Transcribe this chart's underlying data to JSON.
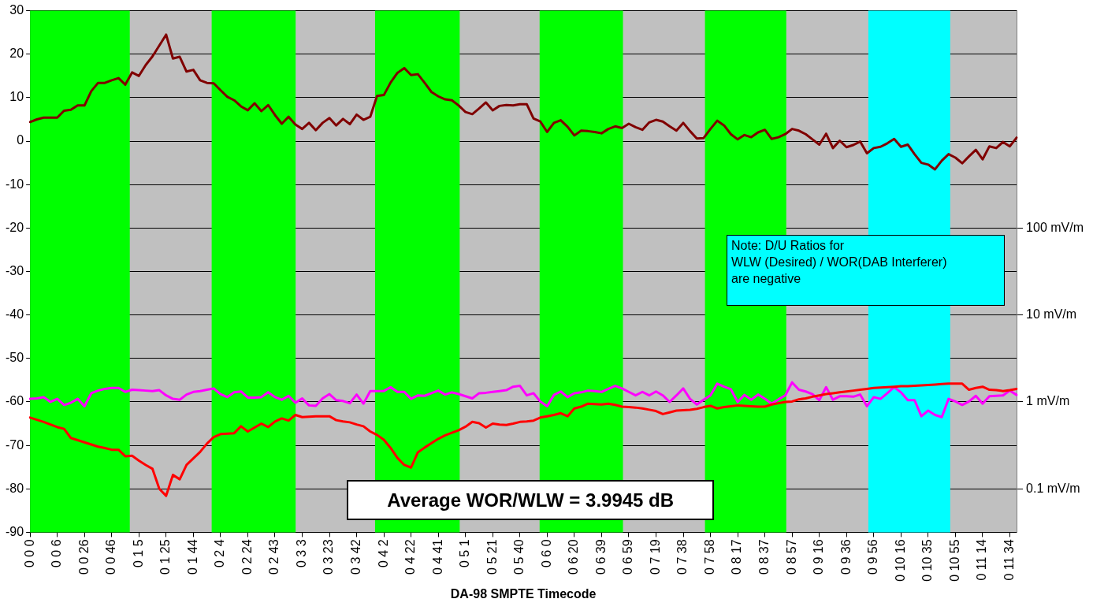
{
  "chart_data": {
    "type": "line",
    "xlabel": "DA-98 SMPTE Timecode",
    "annotations": [
      "Average WOR/WLW = 3.9945 dB",
      "Note: D/U Ratios for\nWLW (Desired) / WOR(DAB Interferer)\nare negative"
    ],
    "categories": [
      "0 0 0",
      null,
      null,
      null,
      "0 0 6",
      null,
      null,
      null,
      "0 0 26",
      null,
      null,
      null,
      "0 0 46",
      null,
      null,
      null,
      "0 1 5",
      null,
      null,
      null,
      "0 1 25",
      null,
      null,
      null,
      "0 1 44",
      null,
      null,
      null,
      "0 2 4",
      null,
      null,
      null,
      "0 2 24",
      null,
      null,
      null,
      "0 2 43",
      null,
      null,
      null,
      "0 3 3",
      null,
      null,
      null,
      "0 3 23",
      null,
      null,
      null,
      "0 3 42",
      null,
      null,
      null,
      "0 4 2",
      null,
      null,
      null,
      "0 4 22",
      null,
      null,
      null,
      "0 4 41",
      null,
      null,
      null,
      "0 5 1",
      null,
      null,
      null,
      "0 5 21",
      null,
      null,
      null,
      "0 5 40",
      null,
      null,
      null,
      "0 6 0",
      null,
      null,
      null,
      "0 6 20",
      null,
      null,
      null,
      "0 6 39",
      null,
      null,
      null,
      "0 6 59",
      null,
      null,
      null,
      "0 7 19",
      null,
      null,
      null,
      "0 7 38",
      null,
      null,
      null,
      "0 7 58",
      null,
      null,
      null,
      "0 8 17",
      null,
      null,
      null,
      "0 8 37",
      null,
      null,
      null,
      "0 8 57",
      null,
      null,
      null,
      "0 9 16",
      null,
      null,
      null,
      "0 9 36",
      null,
      null,
      null,
      "0 9 56",
      null,
      null,
      null,
      "0 10 16",
      null,
      null,
      null,
      "0 10 35",
      null,
      null,
      null,
      "0 10 55",
      null,
      null,
      null,
      "0 11 14",
      null,
      null,
      null,
      "0 11 34",
      null
    ],
    "ylim": [
      -90,
      30
    ],
    "yticks": [
      -90,
      -80,
      -70,
      -60,
      -50,
      -40,
      -30,
      -20,
      -10,
      0,
      10,
      20,
      30
    ],
    "log": "y2",
    "y2lim": [
      0.0316,
      31623
    ],
    "y2ticks": [
      {
        "value": 100,
        "label": "100 mV/m"
      },
      {
        "value": 10,
        "label": "10 mV/m"
      },
      {
        "value": 1,
        "label": "1 mV/m"
      },
      {
        "value": 0.1,
        "label": "0.1 mV/m"
      }
    ],
    "grid": "y",
    "marker": "none",
    "line_style": "solid",
    "series": [
      {
        "color": "#800000",
        "values": [
          4.4,
          5,
          5.4,
          5.4,
          5.4,
          7,
          7.2,
          8.2,
          8.2,
          11.5,
          13.4,
          13.4,
          14,
          14.5,
          13,
          15.8,
          15,
          17.5,
          19.5,
          22,
          24.5,
          19,
          19.4,
          16,
          16.4,
          14,
          13.4,
          13.3,
          11.7,
          10.2,
          9.4,
          8,
          7.1,
          8.7,
          6.9,
          8.3,
          6,
          4,
          5.6,
          3.8,
          2.8,
          4.2,
          2.5,
          4.2,
          5.3,
          3.6,
          5.1,
          3.9,
          6.1,
          4.9,
          5.6,
          10.4,
          10.6,
          13.5,
          15.7,
          16.8,
          15.2,
          15.4,
          13.4,
          11.3,
          10.3,
          9.6,
          9.4,
          8.2,
          6.7,
          6.2,
          7.5,
          8.9,
          7.1,
          8.1,
          8.3,
          8.2,
          8.5,
          8.5,
          5.2,
          4.5,
          2.1,
          4.2,
          4.8,
          3.3,
          1.3,
          2.4,
          2.3,
          2.1,
          1.8,
          2.8,
          3.4,
          3,
          4,
          3.2,
          2.6,
          4.3,
          4.9,
          4.5,
          3.4,
          2.4,
          4.2,
          2.3,
          0.6,
          0.7,
          2.8,
          4.7,
          3.6,
          1.6,
          0.4,
          1.4,
          0.9,
          2,
          2.6,
          0.5,
          0.9,
          1.6,
          2.8,
          2.4,
          1.6,
          0.4,
          -0.8,
          1.7,
          -1.6,
          0.1,
          -1.4,
          -0.9,
          -0.1,
          -2.8,
          -1.6,
          -1.3,
          -0.5,
          0.5,
          -1.3,
          -0.8,
          -3,
          -5,
          -5.4,
          -6.5,
          -4.5,
          -3,
          -3.8,
          -5.1,
          -3.5,
          -2,
          -4.2,
          -1.2,
          -1.6,
          -0.2,
          -1.2,
          0.8
        ]
      },
      {
        "color": "#ff0000",
        "values": [
          -63.6,
          -64.1,
          -64.6,
          -65.2,
          -65.8,
          -66.2,
          -68.3,
          -68.8,
          -69.3,
          -69.8,
          -70.3,
          -70.6,
          -71,
          -71,
          -72.5,
          -72.4,
          -73.5,
          -74.5,
          -75.4,
          -80,
          -81.6,
          -76.8,
          -77.8,
          -74.5,
          -73,
          -71.5,
          -69.6,
          -68.1,
          -67.4,
          -67.3,
          -67.2,
          -65.6,
          -66.8,
          -65.9,
          -65,
          -65.8,
          -64.5,
          -63.8,
          -64.3,
          -63,
          -63.5,
          -63.4,
          -63.3,
          -63.3,
          -63.3,
          -64.2,
          -64.5,
          -64.7,
          -65.2,
          -65.6,
          -66.8,
          -67.6,
          -68.7,
          -70.6,
          -72.9,
          -74.5,
          -75.1,
          -71.6,
          -70.5,
          -69.5,
          -68.5,
          -67.7,
          -67.1,
          -66.5,
          -65.7,
          -64.6,
          -64.9,
          -65.9,
          -65,
          -65.2,
          -65.3,
          -65,
          -64.6,
          -64.5,
          -64.3,
          -63.6,
          -63.3,
          -63,
          -62.6,
          -63.3,
          -61.5,
          -61.1,
          -60.4,
          -60.5,
          -60.6,
          -60.4,
          -60.7,
          -61.1,
          -61.2,
          -61.3,
          -61.5,
          -61.8,
          -62.1,
          -62.8,
          -62.4,
          -62,
          -61.9,
          -61.8,
          -61.6,
          -61.2,
          -60.9,
          -61.5,
          -61.2,
          -61,
          -60.8,
          -60.9,
          -61,
          -61.1,
          -61.1,
          -60.6,
          -60.3,
          -60,
          -59.9,
          -59.4,
          -59.2,
          -58.8,
          -58.5,
          -58.2,
          -58,
          -57.8,
          -57.6,
          -57.4,
          -57.2,
          -57,
          -56.8,
          -56.7,
          -56.6,
          -56.5,
          -56.4,
          -56.4,
          -56.3,
          -56.2,
          -56.1,
          -56,
          -55.9,
          -55.8,
          -55.8,
          -55.8,
          -57.2,
          -56.8,
          -56.5,
          -57.2,
          -57.3,
          -57.5,
          -57.3,
          -57
        ]
      },
      {
        "color": "#ff00ff",
        "values": [
          -59.3,
          -59.2,
          -58.9,
          -60,
          -59.3,
          -60.7,
          -60.2,
          -59.3,
          -61,
          -58,
          -57.4,
          -57,
          -56.8,
          -56.8,
          -57.7,
          -57.2,
          -57.3,
          -57.4,
          -57.5,
          -57.3,
          -58.5,
          -59.3,
          -59.5,
          -58.3,
          -57.7,
          -57.5,
          -57.2,
          -56.9,
          -58.2,
          -58.9,
          -57.8,
          -57.6,
          -59,
          -59,
          -58.9,
          -57.8,
          -58.9,
          -59.5,
          -58.6,
          -60.2,
          -59.2,
          -60.8,
          -60.9,
          -59.2,
          -58.2,
          -59.6,
          -59.8,
          -60.3,
          -58.3,
          -60.4,
          -57.5,
          -57.5,
          -57.5,
          -56.6,
          -57.7,
          -57.7,
          -59.3,
          -58.5,
          -58.6,
          -58,
          -57.4,
          -58.3,
          -57.8,
          -58.2,
          -58.7,
          -59.2,
          -58,
          -57.9,
          -57.7,
          -57.5,
          -57.3,
          -56.5,
          -56.3,
          -58.5,
          -58,
          -59.9,
          -61,
          -58.4,
          -57.6,
          -58.9,
          -58,
          -57.8,
          -57.4,
          -57.5,
          -57.7,
          -57,
          -56.3,
          -56.9,
          -57.7,
          -58.5,
          -57.7,
          -58.5,
          -57.6,
          -58.5,
          -60,
          -58.5,
          -56.9,
          -59.3,
          -60.6,
          -59.5,
          -58.5,
          -55.8,
          -56.5,
          -57.1,
          -60,
          -58.4,
          -59.5,
          -58.3,
          -59.3,
          -60.4,
          -59.4,
          -58.5,
          -55.5,
          -57.2,
          -57.6,
          -58.2,
          -59.6,
          -56.6,
          -59.5,
          -58.7,
          -58.7,
          -58.8,
          -58.3,
          -61,
          -58.9,
          -59.3,
          -58,
          -56.6,
          -57.8,
          -59.6,
          -59.6,
          -63.3,
          -62,
          -63,
          -63.5,
          -59.3,
          -59.9,
          -60.7,
          -59.9,
          -58.6,
          -60.4,
          -58.7,
          -58.6,
          -58.5,
          -57.4,
          -58.4
        ]
      }
    ]
  }
}
